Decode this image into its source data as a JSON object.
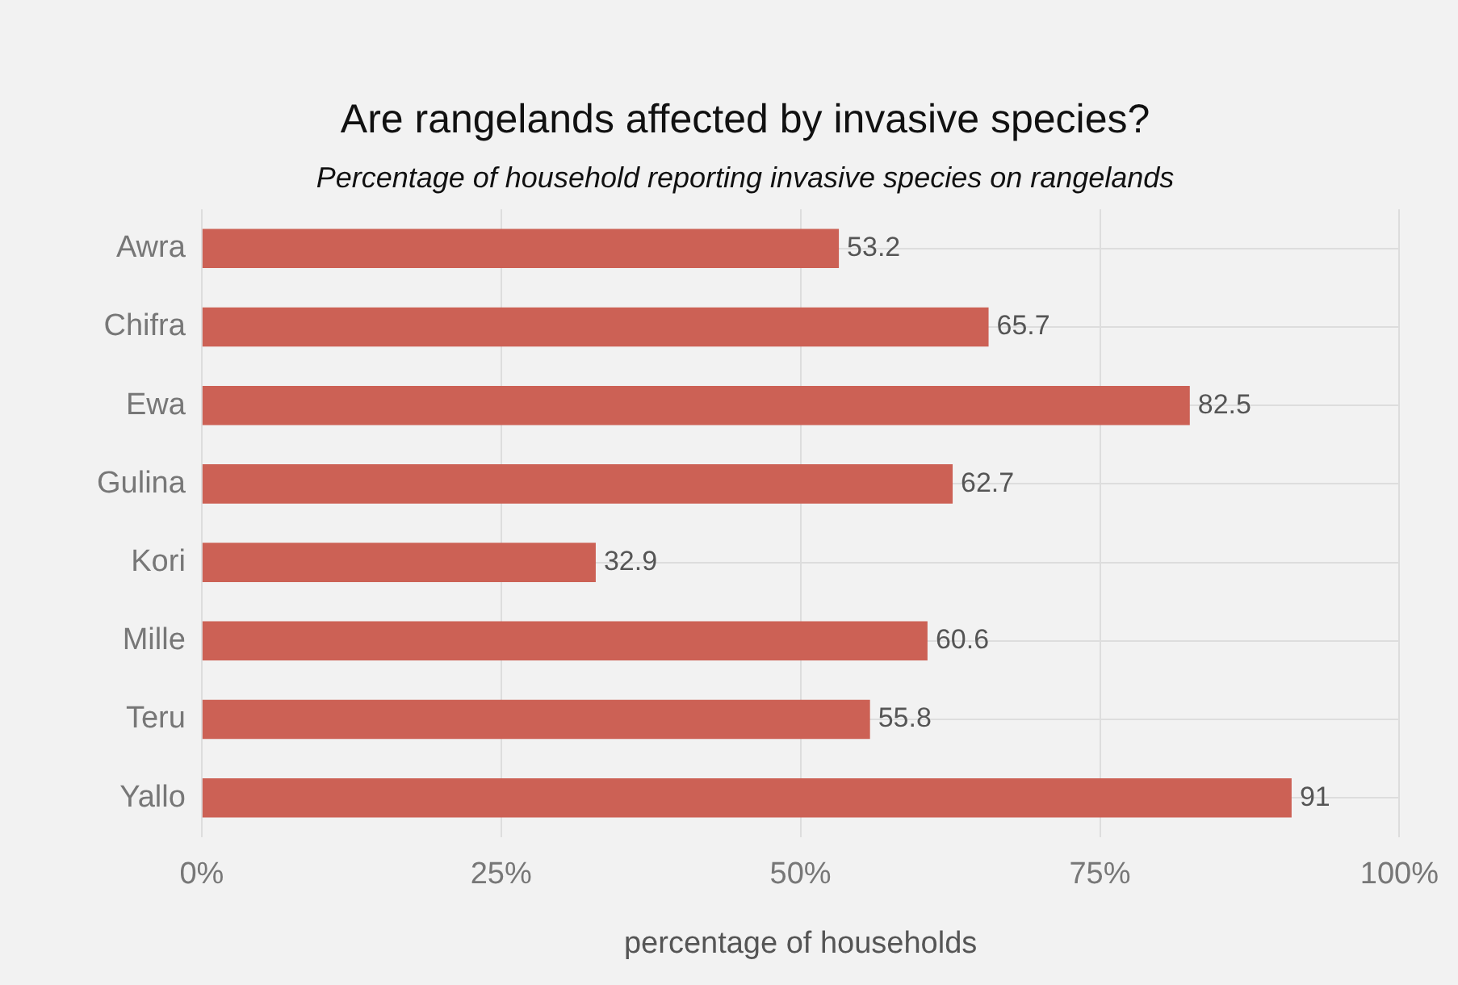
{
  "chart_data": {
    "type": "bar",
    "orientation": "horizontal",
    "title": "Are rangelands affected by invasive species?",
    "subtitle": "Percentage of household reporting invasive species on rangelands",
    "xlabel": "percentage of households",
    "categories": [
      "Awra",
      "Chifra",
      "Ewa",
      "Gulina",
      "Kori",
      "Mille",
      "Teru",
      "Yallo"
    ],
    "values": [
      53.2,
      65.7,
      82.5,
      62.7,
      32.9,
      60.6,
      55.8,
      91
    ],
    "color": "#cc6155",
    "data_labels": true,
    "xlim": [
      0,
      100
    ],
    "xticks": [
      {
        "value": 0,
        "label": "0%"
      },
      {
        "value": 25,
        "label": "25%"
      },
      {
        "value": 50,
        "label": "50%"
      },
      {
        "value": 75,
        "label": "75%"
      },
      {
        "value": 100,
        "label": "100%"
      }
    ],
    "grid": true,
    "legend": false
  }
}
